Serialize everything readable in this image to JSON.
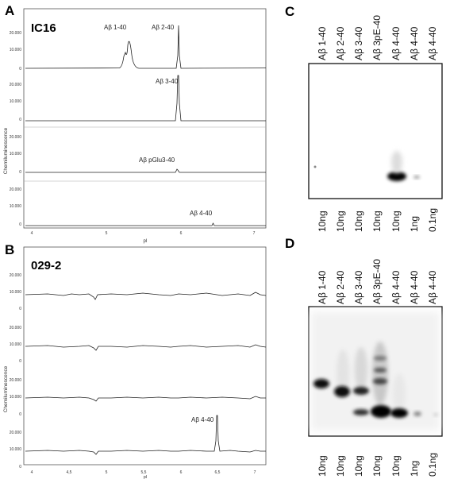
{
  "panels": {
    "A": {
      "letter": "A",
      "sample": "IC16",
      "y_axis_label": "Chemiluminescence",
      "x_axis_label": "pI",
      "x_ticks": [
        "4",
        "5",
        "6",
        "7"
      ],
      "tracks": [
        {
          "ticks": [
            "20.000",
            "10.000",
            "0"
          ],
          "labels": [
            "Aβ 1-40",
            "Aβ 2-40"
          ]
        },
        {
          "ticks": [
            "20.000",
            "10.000",
            "0"
          ],
          "labels": [
            "Aβ 3-40"
          ]
        },
        {
          "ticks": [
            "20.000",
            "10.000",
            "0"
          ],
          "labels": [
            "Aβ  pGlu3-40"
          ]
        },
        {
          "ticks": [
            "20.000",
            "10.000",
            "0"
          ],
          "labels": [
            "Aβ 4-40"
          ]
        }
      ]
    },
    "B": {
      "letter": "B",
      "sample": "029-2",
      "y_axis_label": "Chemiluminescence",
      "x_axis_label": "pI",
      "x_ticks": [
        "4",
        "4,5",
        "5",
        "5,5",
        "6",
        "6,5",
        "7"
      ],
      "tracks": [
        {
          "ticks": [
            "20.000",
            "10.000",
            "0"
          ],
          "labels": []
        },
        {
          "ticks": [
            "20.000",
            "10.000",
            "0"
          ],
          "labels": []
        },
        {
          "ticks": [
            "20.000",
            "10.000",
            "0"
          ],
          "labels": []
        },
        {
          "ticks": [
            "20.000",
            "10.000",
            "0"
          ],
          "labels": [
            "Aβ 4-40"
          ]
        }
      ]
    },
    "C": {
      "letter": "C",
      "lanes": [
        "Aβ 1-40",
        "Aβ 2-40",
        "Aβ 3-40",
        "Aβ 3pE-40",
        "Aβ 4-40",
        "Aβ 4-40",
        "Aβ 4-40"
      ],
      "amounts": [
        "10ng",
        "10ng",
        "10ng",
        "10ng",
        "10ng",
        "1ng",
        "0.1ng"
      ]
    },
    "D": {
      "letter": "D",
      "lanes": [
        "Aβ 1-40",
        "Aβ 2-40",
        "Aβ 3-40",
        "Aβ 3pE-40",
        "Aβ 4-40",
        "Aβ 4-40",
        "Aβ 4-40"
      ],
      "amounts": [
        "10ng",
        "10ng",
        "10ng",
        "10ng",
        "10ng",
        "1ng",
        "0.1ng"
      ]
    }
  }
}
